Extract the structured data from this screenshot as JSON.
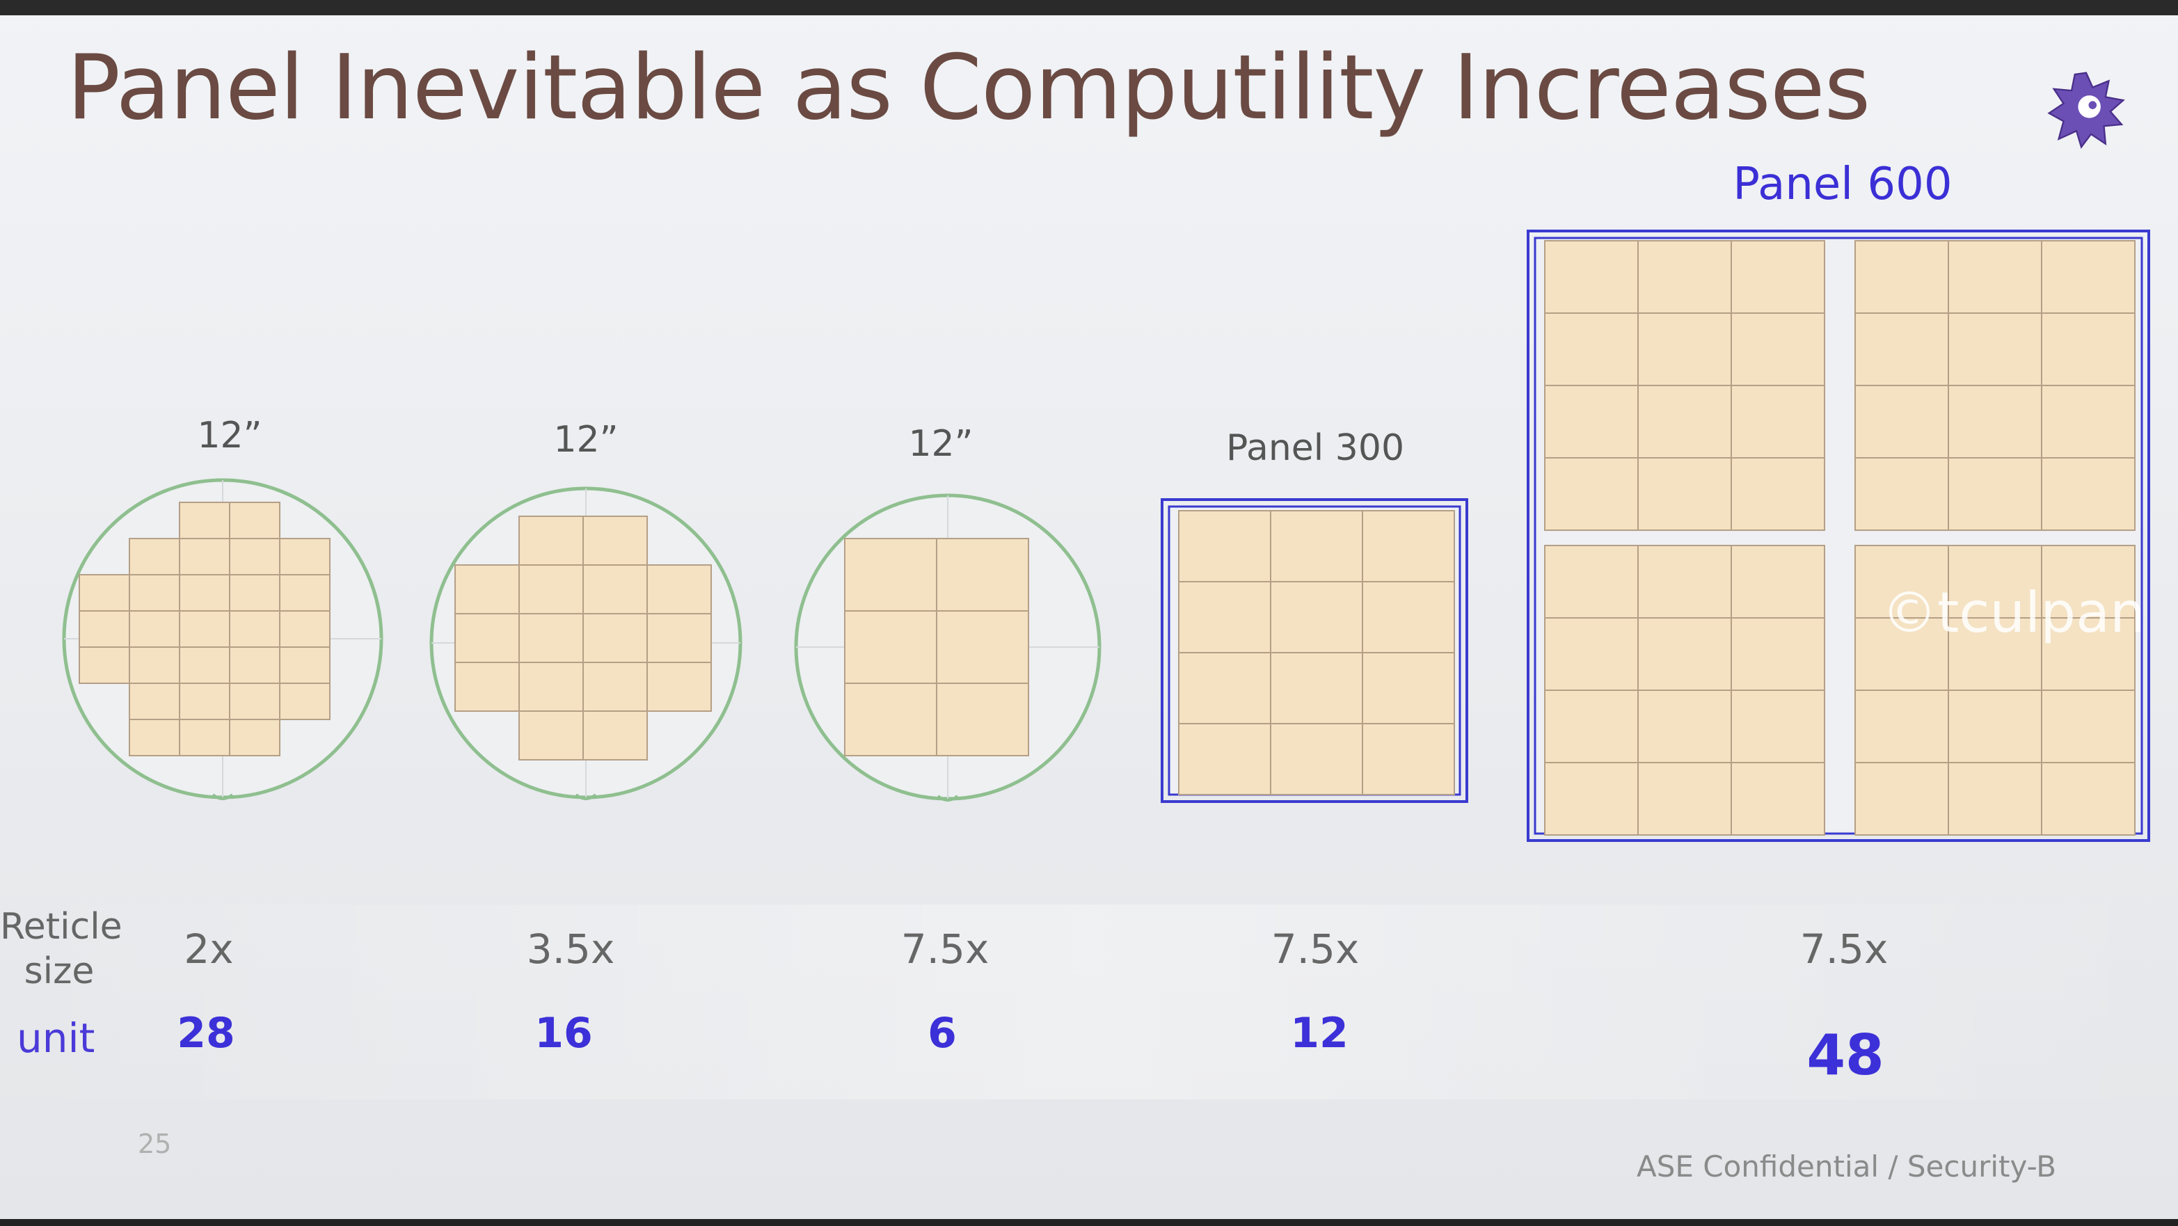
{
  "slide": {
    "title": "Panel Inevitable as Computility Increases",
    "page_number": "25",
    "footer": "ASE Confidential / Security-B",
    "watermark": "©tculpan"
  },
  "rows": {
    "reticle_label": "Reticle size",
    "unit_label": "unit"
  },
  "items": [
    {
      "label": "12”",
      "shape": "wafer",
      "reticle": "2x",
      "unit": "28"
    },
    {
      "label": "12”",
      "shape": "wafer",
      "reticle": "3.5x",
      "unit": "16"
    },
    {
      "label": "12”",
      "shape": "wafer",
      "reticle": "7.5x",
      "unit": "6"
    },
    {
      "label": "Panel 300",
      "shape": "panel",
      "reticle": "7.5x",
      "unit": "12"
    },
    {
      "label": "Panel 600",
      "shape": "panel",
      "reticle": "7.5x",
      "unit": "48"
    }
  ],
  "colors": {
    "die_fill": "#f4e2c3",
    "die_stroke": "#b59f86",
    "wafer_stroke": "#8fbf8f",
    "panel_stroke": "#3a3ad0",
    "title": "#6a4a42",
    "accent": "#3b2fd6"
  }
}
